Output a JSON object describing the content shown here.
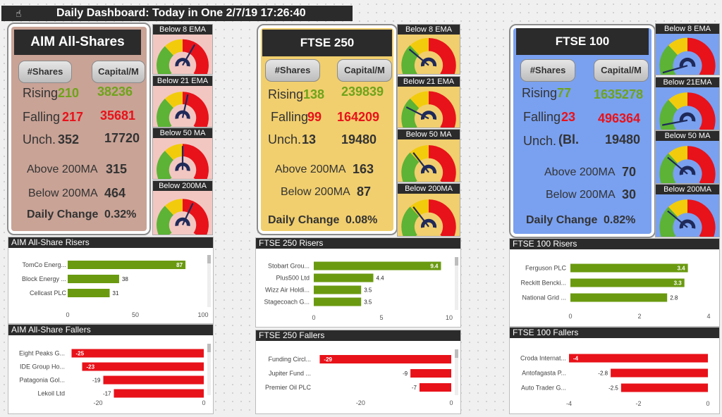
{
  "title": "Daily Dashboard: Today in One 2/7/19 17:26:40",
  "colors": {
    "green": "#6fa31b",
    "red": "#e8121a",
    "aim_bg": "#c9a396",
    "ftse250_bg": "#f1cf6e",
    "ftse100_bg": "#7aa1f0"
  },
  "buttons": {
    "shares": "#Shares",
    "capital": "Capital/M"
  },
  "labels": {
    "rising": "Rising",
    "falling": "Falling",
    "unch": "Unch.",
    "above": "Above 200MA",
    "below": "Below 200MA",
    "daily": "Daily Change"
  },
  "markets": [
    {
      "name": "AIM All-Shares",
      "rising_shares": "210",
      "rising_cap": "38236",
      "falling_shares": "217",
      "falling_cap": "35681",
      "unch_shares": "352",
      "unch_cap": "17720",
      "above200": "315",
      "below200": "464",
      "daily_change": "0.32%",
      "gauge_titles": [
        "Below 8 EMA",
        "Below 21 EMA",
        "Below 50 MA",
        "Below 200MA"
      ],
      "gauge_values": [
        0.62,
        0.55,
        0.5,
        0.6
      ]
    },
    {
      "name": "FTSE 250",
      "rising_shares": "138",
      "rising_cap": "239839",
      "falling_shares": "99",
      "falling_cap": "164209",
      "unch_shares": "13",
      "unch_cap": "19480",
      "above200": "163",
      "below200": "87",
      "daily_change": "0.08%",
      "gauge_titles": [
        "Below 8 EMA",
        "Below 21 EMA",
        "Below 50 MA",
        "Below 200MA"
      ],
      "gauge_values": [
        0.3,
        0.25,
        0.35,
        0.35
      ]
    },
    {
      "name": "FTSE 100",
      "rising_shares": "77",
      "rising_cap": "1635278",
      "falling_shares": "23",
      "falling_cap": "496364",
      "unch_shares": "(Bl.",
      "unch_cap": "19480",
      "above200": "70",
      "below200": "30",
      "daily_change": "0.82%",
      "gauge_titles": [
        "Below 8 EMA",
        "Below 21EMA",
        "Below 50 MA",
        "Below 200MA"
      ],
      "gauge_values": [
        0.08,
        0.1,
        0.3,
        0.3
      ]
    }
  ],
  "chart_data": [
    {
      "type": "bar",
      "title": "AIM All-Share Risers",
      "categories": [
        "TomCo Energ...",
        "Block Energy ...",
        "Cellcast PLC"
      ],
      "values": [
        87,
        38,
        31
      ],
      "xlim": [
        0,
        100
      ],
      "xticks": [
        "0",
        "50",
        "100"
      ]
    },
    {
      "type": "bar",
      "title": "AIM All-Share Fallers",
      "categories": [
        "Eight Peaks G...",
        "IDE Group Ho...",
        "Patagonia Gol...",
        "Lekoil Ltd"
      ],
      "values": [
        -25,
        -23,
        -19,
        -17
      ],
      "xlim": [
        -26,
        0
      ],
      "xticks": [
        "-20",
        "0"
      ]
    },
    {
      "type": "bar",
      "title": "FTSE 250 Risers",
      "categories": [
        "Stobart Grou...",
        "Plus500 Ltd",
        "Wizz Air Holdi...",
        "Stagecoach G..."
      ],
      "values": [
        9.4,
        4.4,
        3.5,
        3.5
      ],
      "xlim": [
        0,
        10
      ],
      "xticks": [
        "0",
        "5",
        "10"
      ]
    },
    {
      "type": "bar",
      "title": "FTSE 250 Fallers",
      "categories": [
        "Funding Circl...",
        "Jupiter Fund ...",
        "Premier Oil PLC"
      ],
      "values": [
        -29,
        -9,
        -7
      ],
      "xlim": [
        -30,
        0
      ],
      "xticks": [
        "-20",
        "0"
      ]
    },
    {
      "type": "bar",
      "title": "FTSE 100 Risers",
      "categories": [
        "Ferguson PLC",
        "Reckitt Bencki...",
        "National Grid ..."
      ],
      "values": [
        3.4,
        3.3,
        2.8
      ],
      "xlim": [
        0,
        4
      ],
      "xticks": [
        "0",
        "2",
        "4"
      ]
    },
    {
      "type": "bar",
      "title": "FTSE 100 Fallers",
      "categories": [
        "Croda Internat...",
        "Antofagasta P...",
        "Auto Trader G..."
      ],
      "values": [
        -4.0,
        -2.8,
        -2.5
      ],
      "xlim": [
        -4,
        0
      ],
      "xticks": [
        "-4",
        "-2",
        "0"
      ]
    }
  ]
}
